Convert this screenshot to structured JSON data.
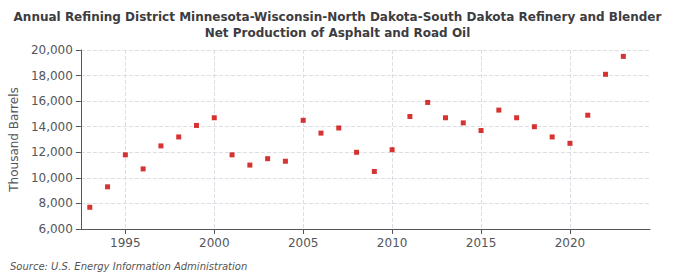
{
  "chart_data": {
    "type": "scatter",
    "title": "Annual Refining District Minnesota-Wisconsin-North Dakota-South Dakota Refinery and Blender\nNet Production of Asphalt and Road Oil",
    "ylabel": "Thousand Barrels",
    "source": "Source: U.S. Energy Information Administration",
    "x": [
      1993,
      1994,
      1995,
      1996,
      1997,
      1998,
      1999,
      2000,
      2001,
      2002,
      2003,
      2004,
      2005,
      2006,
      2007,
      2008,
      2009,
      2010,
      2011,
      2012,
      2013,
      2014,
      2015,
      2016,
      2017,
      2018,
      2019,
      2020,
      2021,
      2022,
      2023
    ],
    "values": [
      7700,
      9300,
      11800,
      10700,
      12500,
      13200,
      14100,
      14700,
      11800,
      11000,
      11500,
      11300,
      14500,
      13500,
      13900,
      12000,
      10500,
      12200,
      14800,
      15900,
      14700,
      14300,
      13700,
      15300,
      14700,
      14000,
      13200,
      12700,
      14900,
      18100,
      19500
    ],
    "color": "#cc0000",
    "marker": "square",
    "xlim": [
      1992.5,
      2024.5
    ],
    "xticks": [
      1995,
      2000,
      2005,
      2010,
      2015,
      2020
    ],
    "ylim": [
      6000,
      20000
    ],
    "yticks": [
      {
        "value": 6000,
        "label": "6,000"
      },
      {
        "value": 8000,
        "label": "8,000"
      },
      {
        "value": 10000,
        "label": "10,000"
      },
      {
        "value": 12000,
        "label": "12,000"
      },
      {
        "value": 14000,
        "label": "14,000"
      },
      {
        "value": 16000,
        "label": "16,000"
      },
      {
        "value": 18000,
        "label": "18,000"
      },
      {
        "value": 20000,
        "label": "20,000"
      }
    ],
    "grid": true
  }
}
